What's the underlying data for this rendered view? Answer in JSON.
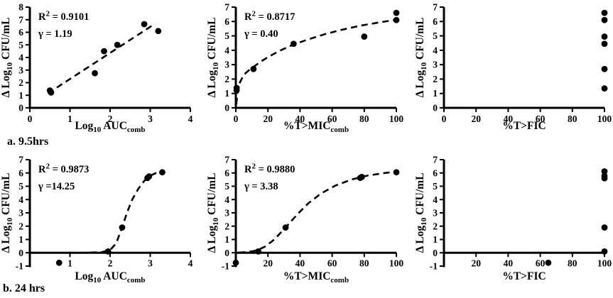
{
  "figure": {
    "section_a_label": "a. 9.5hrs",
    "section_b_label": "b. 24 hrs",
    "colors": {
      "ink": "#000000",
      "background": "#ffffff"
    }
  },
  "chart_data": [
    {
      "id": "a-auc",
      "row": "a",
      "type": "scatter",
      "xlabel_parts": [
        {
          "t": "Log"
        },
        {
          "sub": "10"
        },
        {
          "t": " AUC"
        },
        {
          "sub": "comb"
        }
      ],
      "ylabel_parts": [
        {
          "t": "Δ Log"
        },
        {
          "sub": "10"
        },
        {
          "t": " CFU/mL"
        }
      ],
      "xlim": [
        0,
        4
      ],
      "ylim": [
        0,
        8
      ],
      "xticks": [
        0,
        1,
        2,
        3,
        4
      ],
      "yticks": [
        0,
        1,
        2,
        3,
        4,
        5,
        6,
        7,
        8
      ],
      "x_axis_at": 0,
      "annotations": [
        {
          "name": "r2-annotation",
          "parts": [
            {
              "t": "R"
            },
            {
              "sup": "2"
            },
            {
              "t": " = 0.9101"
            }
          ]
        },
        {
          "name": "gamma-annotation",
          "parts": [
            {
              "t": "γ = 1.19"
            }
          ]
        }
      ],
      "points": [
        [
          0.5,
          1.38
        ],
        [
          0.53,
          1.22
        ],
        [
          1.62,
          2.75
        ],
        [
          1.85,
          4.5
        ],
        [
          2.18,
          5.0
        ],
        [
          2.85,
          6.65
        ],
        [
          3.2,
          6.1
        ]
      ],
      "fit_curve": [
        [
          0.45,
          1.15
        ],
        [
          3.12,
          6.68
        ]
      ]
    },
    {
      "id": "a-tmic",
      "row": "a",
      "type": "scatter",
      "xlabel_parts": [
        {
          "t": "%T>MIC"
        },
        {
          "sub": "comb"
        }
      ],
      "ylabel_parts": [
        {
          "t": "Δ Log"
        },
        {
          "sub": "10"
        },
        {
          "t": " CFU/mL"
        }
      ],
      "xlim": [
        0,
        100
      ],
      "ylim": [
        0,
        7
      ],
      "xticks": [
        0,
        20,
        40,
        60,
        80,
        100
      ],
      "yticks": [
        0,
        1,
        2,
        3,
        4,
        5,
        6,
        7
      ],
      "x_axis_at": 0,
      "annotations": [
        {
          "name": "r2-annotation",
          "parts": [
            {
              "t": "R"
            },
            {
              "sup": "2"
            },
            {
              "t": " = 0.8717"
            }
          ]
        },
        {
          "name": "gamma-annotation",
          "parts": [
            {
              "t": "γ = 0.40"
            }
          ]
        }
      ],
      "points": [
        [
          0.5,
          1.38
        ],
        [
          0.5,
          1.22
        ],
        [
          11,
          2.7
        ],
        [
          36,
          4.45
        ],
        [
          80,
          4.95
        ],
        [
          100,
          6.6
        ],
        [
          100,
          6.1
        ]
      ],
      "fit_curve": [
        [
          0.3,
          0.25
        ],
        [
          1,
          1.05
        ],
        [
          2.5,
          1.75
        ],
        [
          5,
          2.3
        ],
        [
          8,
          2.6
        ],
        [
          11,
          2.85
        ],
        [
          16,
          3.25
        ],
        [
          22,
          3.65
        ],
        [
          29,
          4.05
        ],
        [
          36,
          4.4
        ],
        [
          45,
          4.75
        ],
        [
          55,
          5.1
        ],
        [
          65,
          5.4
        ],
        [
          78,
          5.72
        ],
        [
          90,
          5.95
        ],
        [
          100,
          6.12
        ]
      ]
    },
    {
      "id": "a-fic",
      "row": "a",
      "type": "scatter",
      "xlabel_parts": [
        {
          "t": "%T>FIC"
        }
      ],
      "ylabel_parts": [
        {
          "t": "Δ Log"
        },
        {
          "sub": "10"
        },
        {
          "t": " CFU/mL"
        }
      ],
      "xlim": [
        0,
        100
      ],
      "ylim": [
        0,
        7
      ],
      "xticks": [
        0,
        20,
        40,
        60,
        80,
        100
      ],
      "yticks": [
        0,
        1,
        2,
        3,
        4,
        5,
        6,
        7
      ],
      "x_axis_at": 0,
      "annotations": [],
      "points": [
        [
          100,
          6.6
        ],
        [
          100,
          6.1
        ],
        [
          100,
          4.95
        ],
        [
          100,
          4.45
        ],
        [
          100,
          2.7
        ],
        [
          100,
          1.35
        ]
      ],
      "fit_curve": []
    },
    {
      "id": "b-auc",
      "row": "b",
      "type": "scatter",
      "xlabel_parts": [
        {
          "t": "Log"
        },
        {
          "sub": "10"
        },
        {
          "t": " AUC"
        },
        {
          "sub": "comb"
        }
      ],
      "ylabel_parts": [
        {
          "t": "Δ Log"
        },
        {
          "sub": "10"
        },
        {
          "t": " CFU/mL"
        }
      ],
      "xlim": [
        0,
        4
      ],
      "ylim": [
        -1,
        7
      ],
      "xticks": [
        1,
        2,
        3,
        4
      ],
      "yticks": [
        -1,
        0,
        1,
        2,
        3,
        4,
        5,
        6,
        7
      ],
      "x_axis_at": 0,
      "annotations": [
        {
          "name": "r2-annotation",
          "parts": [
            {
              "t": "R"
            },
            {
              "sup": "2"
            },
            {
              "t": " = 0.9873"
            }
          ]
        },
        {
          "name": "gamma-annotation",
          "parts": [
            {
              "t": "γ =14.25"
            }
          ]
        }
      ],
      "points": [
        [
          0.73,
          -0.75
        ],
        [
          1.95,
          0.1
        ],
        [
          2.3,
          1.9
        ],
        [
          2.93,
          5.62
        ],
        [
          2.97,
          5.74
        ],
        [
          3.3,
          6.05
        ]
      ],
      "fit_curve": [
        [
          1.5,
          0.02
        ],
        [
          1.8,
          0.05
        ],
        [
          2.0,
          0.2
        ],
        [
          2.15,
          0.7
        ],
        [
          2.3,
          1.9
        ],
        [
          2.42,
          3.0
        ],
        [
          2.55,
          4.0
        ],
        [
          2.7,
          4.8
        ],
        [
          2.85,
          5.4
        ],
        [
          3.0,
          5.8
        ],
        [
          3.15,
          6.0
        ],
        [
          3.35,
          6.12
        ]
      ]
    },
    {
      "id": "b-tmic",
      "row": "b",
      "type": "scatter",
      "xlabel_parts": [
        {
          "t": "%T>MIC"
        },
        {
          "sub": "comb"
        }
      ],
      "ylabel_parts": [
        {
          "t": "Δ Log"
        },
        {
          "sub": "10"
        },
        {
          "t": " CFU/mL"
        }
      ],
      "xlim": [
        0,
        100
      ],
      "ylim": [
        -1,
        7
      ],
      "xticks": [
        20,
        40,
        60,
        80,
        100
      ],
      "yticks": [
        -1,
        0,
        1,
        2,
        3,
        4,
        5,
        6,
        7
      ],
      "x_axis_at": 0,
      "annotations": [
        {
          "name": "r2-annotation",
          "parts": [
            {
              "t": "R"
            },
            {
              "sup": "2"
            },
            {
              "t": " = 0.9880"
            }
          ]
        },
        {
          "name": "gamma-annotation",
          "parts": [
            {
              "t": "γ = 3.38"
            }
          ]
        }
      ],
      "points": [
        [
          0,
          -0.75
        ],
        [
          14,
          0.1
        ],
        [
          31,
          1.9
        ],
        [
          77.5,
          5.63
        ],
        [
          78.5,
          5.7
        ],
        [
          100,
          6.05
        ]
      ],
      "fit_curve": [
        [
          2,
          0.02
        ],
        [
          8,
          0.06
        ],
        [
          13,
          0.18
        ],
        [
          18,
          0.45
        ],
        [
          24,
          1.0
        ],
        [
          31,
          1.9
        ],
        [
          38,
          2.85
        ],
        [
          45,
          3.7
        ],
        [
          53,
          4.45
        ],
        [
          62,
          5.05
        ],
        [
          72,
          5.5
        ],
        [
          82,
          5.8
        ],
        [
          92,
          5.98
        ],
        [
          100,
          6.1
        ]
      ]
    },
    {
      "id": "b-fic",
      "row": "b",
      "type": "scatter",
      "xlabel_parts": [
        {
          "t": "%T>FIC"
        }
      ],
      "ylabel_parts": [
        {
          "t": "Δ Log"
        },
        {
          "sub": "10"
        },
        {
          "t": " CFU/mL"
        }
      ],
      "xlim": [
        0,
        100
      ],
      "ylim": [
        -1,
        7
      ],
      "xticks": [
        20,
        40,
        60,
        80,
        100
      ],
      "yticks": [
        -1,
        0,
        1,
        2,
        3,
        4,
        5,
        6,
        7
      ],
      "x_axis_at": 0,
      "annotations": [],
      "points": [
        [
          65,
          -0.75
        ],
        [
          100,
          0.1
        ],
        [
          100,
          1.9
        ],
        [
          100,
          5.6
        ],
        [
          100,
          5.78
        ],
        [
          100,
          6.12
        ]
      ],
      "fit_curve": []
    }
  ]
}
